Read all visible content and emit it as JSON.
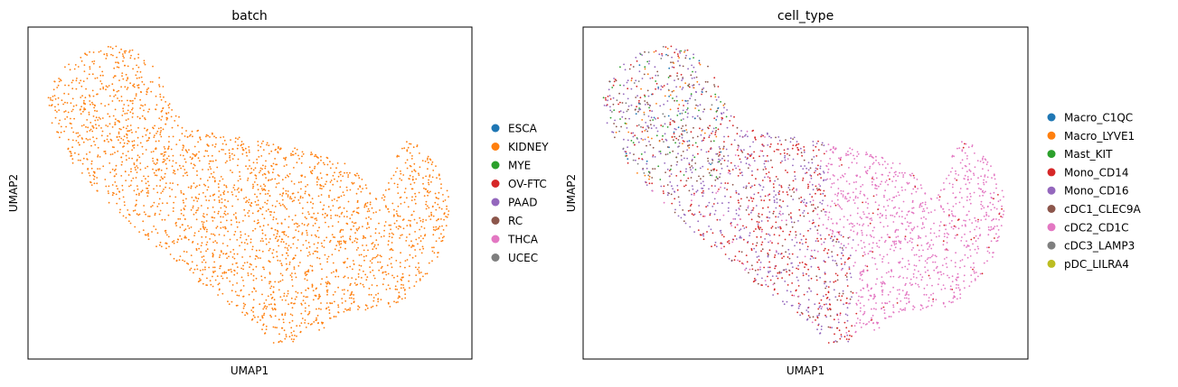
{
  "figure": {
    "colors": {
      "ESCA": "#1f77b4",
      "KIDNEY": "#ff7f0e",
      "MYE": "#2ca02c",
      "OV-FTC": "#d62728",
      "PAAD": "#9467bd",
      "RC": "#8c564b",
      "THCA": "#e377c2",
      "UCEC": "#7f7f7f",
      "Macro_C1QC": "#1f77b4",
      "Macro_LYVE1": "#ff7f0e",
      "Mast_KIT": "#2ca02c",
      "Mono_CD14": "#d62728",
      "Mono_CD16": "#9467bd",
      "cDC1_CLEC9A": "#8c564b",
      "cDC2_CD1C": "#e377c2",
      "cDC3_LAMP3": "#7f7f7f",
      "pDC_LILRA4": "#bcbd22"
    }
  },
  "chart_data": [
    {
      "type": "scatter",
      "title": "batch",
      "xlabel": "UMAP1",
      "ylabel": "UMAP2",
      "ticks": false,
      "grid": false,
      "legend_placement": "right",
      "legend": [
        "ESCA",
        "KIDNEY",
        "MYE",
        "OV-FTC",
        "PAAD",
        "RC",
        "THCA",
        "UCEC"
      ],
      "visible_category": "KIDNEY"
    },
    {
      "type": "scatter",
      "title": "cell_type",
      "xlabel": "UMAP1",
      "ylabel": "UMAP2",
      "ticks": false,
      "grid": false,
      "legend_placement": "right",
      "legend": [
        "Macro_C1QC",
        "Macro_LYVE1",
        "Mast_KIT",
        "Mono_CD14",
        "Mono_CD16",
        "cDC1_CLEC9A",
        "cDC2_CD1C",
        "cDC3_LAMP3",
        "pDC_LILRA4"
      ],
      "regions": [
        {
          "name": "upper-left",
          "mix": {
            "Mono_CD16": 0.35,
            "cDC1_CLEC9A": 0.18,
            "Mono_CD14": 0.15,
            "Mast_KIT": 0.12,
            "cDC3_LAMP3": 0.08,
            "Macro_LYVE1": 0.07,
            "Macro_C1QC": 0.05
          }
        },
        {
          "name": "center",
          "mix": {
            "Mono_CD14": 0.42,
            "Mono_CD16": 0.38,
            "cDC1_CLEC9A": 0.12,
            "cDC2_CD1C": 0.08
          }
        },
        {
          "name": "right",
          "mix": {
            "cDC2_CD1C": 0.96,
            "Mono_CD14": 0.04
          }
        }
      ]
    }
  ]
}
